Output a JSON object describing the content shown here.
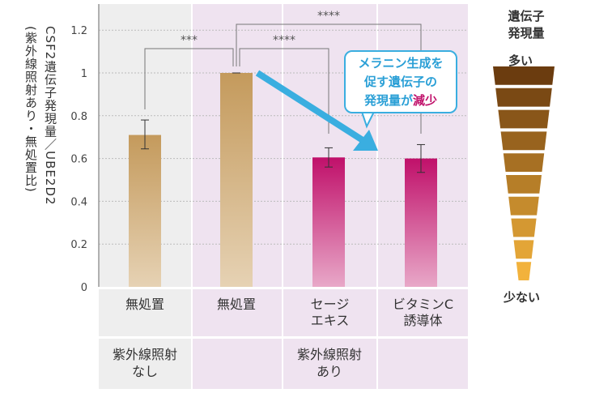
{
  "chart_data": {
    "type": "bar",
    "ylabel": "CSF2遺伝子発現量／UBE2D2",
    "ylabel_sub": "(紫外線照射あり・無処置比)",
    "ylim": [
      0,
      1.3
    ],
    "yticks": [
      "0",
      "0.2",
      "0.4",
      "0.6",
      "0.8",
      "1",
      "1.2"
    ],
    "grid": true,
    "categories": [
      "無処置",
      "無処置",
      "セージ\nエキス",
      "ビタミンC\n誘導体"
    ],
    "category_lines": [
      [
        "無処置"
      ],
      [
        "無処置"
      ],
      [
        "セージ",
        "エキス"
      ],
      [
        "ビタミンC",
        "誘導体"
      ]
    ],
    "values": [
      0.71,
      1.0,
      0.605,
      0.6
    ],
    "error_low": [
      0.645,
      1.0,
      0.56,
      0.535
    ],
    "error_high": [
      0.78,
      1.0,
      0.65,
      0.665
    ],
    "bar_colors": [
      "#c49a5c",
      "#c49a5c",
      "#c0106a",
      "#c0106a"
    ],
    "groups": [
      {
        "lines": [
          "紫外線照射",
          "なし"
        ]
      },
      {
        "lines": [
          "紫外線照射",
          "あり"
        ]
      }
    ],
    "significance": [
      {
        "from": 0,
        "to": 1,
        "label": "***"
      },
      {
        "from": 1,
        "to": 2,
        "label": "****"
      },
      {
        "from": 1,
        "to": 3,
        "label": "****"
      }
    ],
    "callout": {
      "line1": "メラニン生成を",
      "line2": "促す遺伝子の",
      "line3a": "発現量が",
      "line3b": "減少"
    },
    "legend": {
      "title1": "遺伝子",
      "title2": "発現量",
      "high": "多い",
      "low": "少ない"
    },
    "colors": {
      "arrow": "#3aaee0",
      "panel_no_uv": "#eeeeee",
      "panel_uv": "#efe3f0",
      "accent": "#c0106a"
    }
  }
}
